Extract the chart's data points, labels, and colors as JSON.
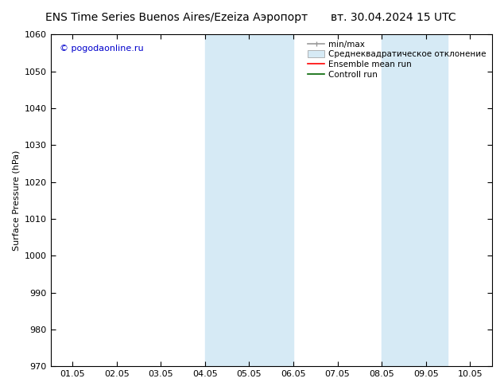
{
  "title_left": "ENS Time Series Buenos Aires/Ezeiza Аэропорт",
  "title_right": "вт. 30.04.2024 15 UTC",
  "ylabel": "Surface Pressure (hPa)",
  "watermark": "© pogodaonline.ru",
  "ylim": [
    970,
    1060
  ],
  "yticks": [
    970,
    980,
    990,
    1000,
    1010,
    1020,
    1030,
    1040,
    1050,
    1060
  ],
  "xtick_labels": [
    "01.05",
    "02.05",
    "03.05",
    "04.05",
    "05.05",
    "06.05",
    "07.05",
    "08.05",
    "09.05",
    "10.05"
  ],
  "background_color": "#ffffff",
  "plot_bg_color": "#ffffff",
  "shaded_regions": [
    {
      "xstart": 3.0,
      "xend": 3.5,
      "color": "#d6eaf5"
    },
    {
      "xstart": 3.5,
      "xend": 5.0,
      "color": "#d6eaf5"
    },
    {
      "xstart": 7.0,
      "xend": 7.5,
      "color": "#d6eaf5"
    },
    {
      "xstart": 7.5,
      "xend": 8.5,
      "color": "#d6eaf5"
    }
  ],
  "legend_entries": [
    {
      "label": "min/max",
      "color": "#999999",
      "lw": 1.2
    },
    {
      "label": "Среднеквадратическое отклонение",
      "facecolor": "#d6eaf5",
      "edgecolor": "#aaaaaa"
    },
    {
      "label": "Ensemble mean run",
      "color": "#ff0000",
      "lw": 1.2
    },
    {
      "label": "Controll run",
      "color": "#006400",
      "lw": 1.2
    }
  ],
  "title_fontsize": 10,
  "tick_fontsize": 8,
  "ylabel_fontsize": 8,
  "watermark_color": "#0000cc",
  "watermark_fontsize": 8,
  "figwidth": 6.34,
  "figheight": 4.9,
  "dpi": 100
}
